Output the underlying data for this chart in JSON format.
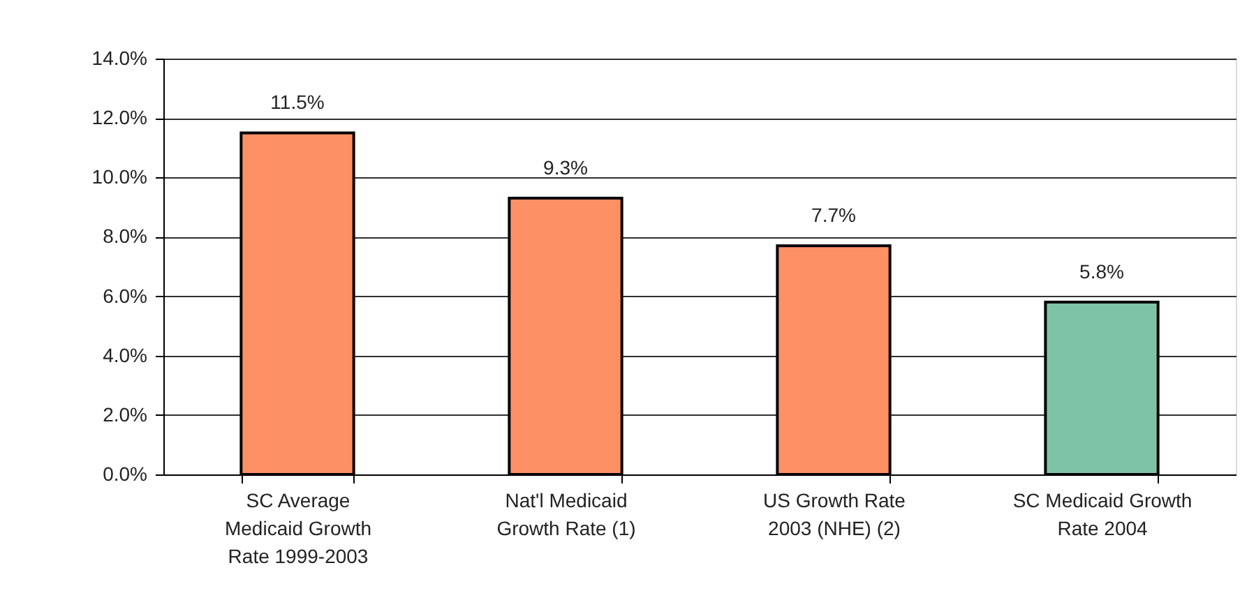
{
  "chart_data": {
    "type": "bar",
    "categories": [
      "SC Average Medicaid Growth Rate 1999-2003",
      "Nat'l Medicaid Growth Rate (1)",
      "US Growth Rate 2003 (NHE) (2)",
      "SC Medicaid Growth Rate 2004"
    ],
    "values": [
      11.5,
      9.3,
      7.7,
      5.8
    ],
    "colors": [
      "#fd9065",
      "#fd9065",
      "#fd9065",
      "#7fc3a6"
    ],
    "value_labels": [
      "11.5%",
      "9.3%",
      "7.7%",
      "5.8%"
    ],
    "ylim": [
      0,
      14
    ],
    "yticks": [
      {
        "value": 0,
        "label": "0.0%"
      },
      {
        "value": 2,
        "label": "2.0%"
      },
      {
        "value": 4,
        "label": "4.0%"
      },
      {
        "value": 6,
        "label": "6.0%"
      },
      {
        "value": 8,
        "label": "8.0%"
      },
      {
        "value": 10,
        "label": "10.0%"
      },
      {
        "value": 12,
        "label": "12.0%"
      },
      {
        "value": 14,
        "label": "14.0%"
      }
    ],
    "grid": "y"
  }
}
